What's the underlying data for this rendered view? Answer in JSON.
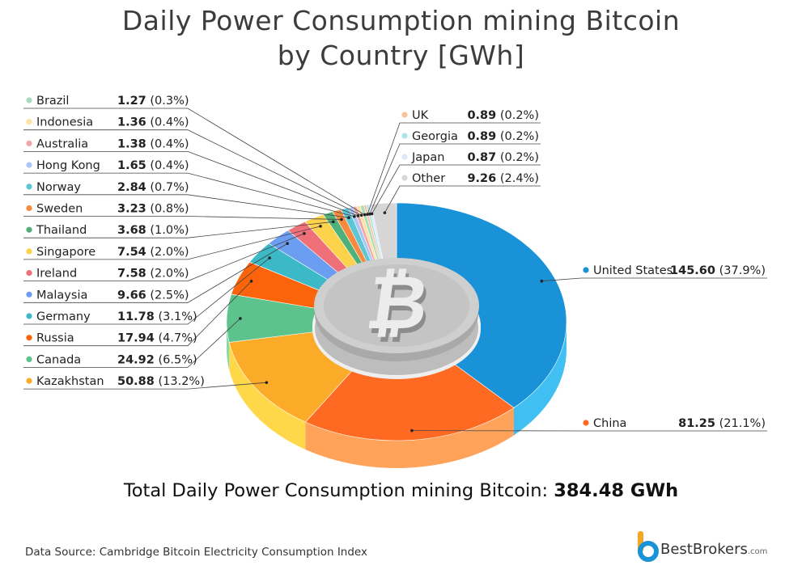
{
  "title_line1": "Daily Power Consumption mining Bitcoin",
  "title_line2": "by Country [GWh]",
  "total_label": "Total Daily Power Consumption mining Bitcoin:",
  "total_value": "384.48 GWh",
  "source": "Data Source: Cambridge Bitcoin Electricity Consumption Index",
  "brand": {
    "name": "BestBrokers",
    "tld": ".com"
  },
  "chart_data": {
    "type": "pie",
    "title": "Daily Power Consumption mining Bitcoin by Country [GWh]",
    "total": 384.48,
    "unit": "GWh",
    "slices": [
      {
        "label": "United States",
        "value": 145.6,
        "pct": "37.9%",
        "color": "#1a92d8",
        "side": "#3fbff2"
      },
      {
        "label": "China",
        "value": 81.25,
        "pct": "21.1%",
        "color": "#ff6a22",
        "side": "#ffa25a"
      },
      {
        "label": "Kazakhstan",
        "value": 50.88,
        "pct": "13.2%",
        "color": "#fbab28",
        "side": "#ffd84a"
      },
      {
        "label": "Canada",
        "value": 24.92,
        "pct": "6.5%",
        "color": "#5cc38d",
        "side": "#84dba8"
      },
      {
        "label": "Russia",
        "value": 17.94,
        "pct": "4.7%",
        "color": "#fb640a",
        "side": "#ff9a4a"
      },
      {
        "label": "Germany",
        "value": 11.78,
        "pct": "3.1%",
        "color": "#3cb9c7",
        "side": "#6fd6df"
      },
      {
        "label": "Malaysia",
        "value": 9.66,
        "pct": "2.5%",
        "color": "#6b9df0",
        "side": "#9bbff7"
      },
      {
        "label": "Ireland",
        "value": 7.58,
        "pct": "2.0%",
        "color": "#f0707a",
        "side": "#f7a0a6"
      },
      {
        "label": "Singapore",
        "value": 7.54,
        "pct": "2.0%",
        "color": "#fcd24a",
        "side": "#fde58a"
      },
      {
        "label": "Thailand",
        "value": 3.68,
        "pct": "1.0%",
        "color": "#4fb07a",
        "side": "#7fcd9f"
      },
      {
        "label": "Sweden",
        "value": 3.23,
        "pct": "0.8%",
        "color": "#f78a3c",
        "side": "#fab47c"
      },
      {
        "label": "Norway",
        "value": 2.84,
        "pct": "0.7%",
        "color": "#5cc6d3",
        "side": "#8fdce4"
      },
      {
        "label": "Hong Kong",
        "value": 1.65,
        "pct": "0.4%",
        "color": "#a9c6f6",
        "side": "#c9dcfa"
      },
      {
        "label": "Australia",
        "value": 1.38,
        "pct": "0.4%",
        "color": "#f2a6aa",
        "side": "#f7c7ca"
      },
      {
        "label": "Indonesia",
        "value": 1.36,
        "pct": "0.4%",
        "color": "#fde3a0",
        "side": "#fff0c8"
      },
      {
        "label": "Brazil",
        "value": 1.27,
        "pct": "0.3%",
        "color": "#a9dcbd",
        "side": "#cdebd9"
      },
      {
        "label": "UK",
        "value": 0.89,
        "pct": "0.2%",
        "color": "#f8c29a",
        "side": "#fbdcc2"
      },
      {
        "label": "Georgia",
        "value": 0.89,
        "pct": "0.2%",
        "color": "#aee3e8",
        "side": "#d0eff2"
      },
      {
        "label": "Japan",
        "value": 0.87,
        "pct": "0.2%",
        "color": "#dfe8f8",
        "side": "#eef3fb"
      },
      {
        "label": "Other",
        "value": 9.26,
        "pct": "2.4%",
        "color": "#d6d6d6",
        "side": "#e8e8e8"
      }
    ],
    "legend_left": [
      "Brazil",
      "Indonesia",
      "Australia",
      "Hong Kong",
      "Norway",
      "Sweden",
      "Thailand",
      "Singapore",
      "Ireland",
      "Malaysia",
      "Germany",
      "Russia",
      "Canada",
      "Kazakhstan"
    ],
    "legend_top_right": [
      "UK",
      "Georgia",
      "Japan",
      "Other"
    ],
    "legend_right": [
      "United States",
      "China"
    ]
  }
}
